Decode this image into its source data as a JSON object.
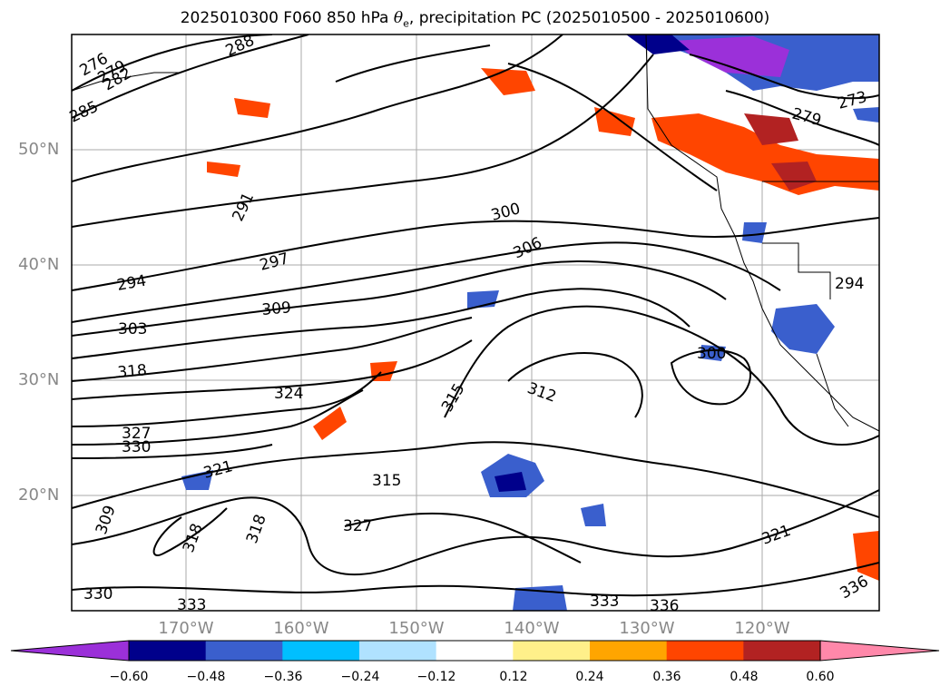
{
  "title": {
    "prefix": "2025010300 F060 850 hPa ",
    "symbol": "θ",
    "symbol_sub": "e",
    "suffix": ", precipitation PC (2025010500 - 2025010600)"
  },
  "latitude_labels": [
    "50°N",
    "40°N",
    "30°N",
    "20°N"
  ],
  "longitude_labels": [
    "170°W",
    "160°W",
    "150°W",
    "140°W",
    "130°W",
    "120°W"
  ],
  "contour_labels": [
    "276",
    "279",
    "282",
    "285",
    "288",
    "291",
    "294",
    "297",
    "300",
    "303",
    "306",
    "309",
    "312",
    "315",
    "318",
    "321",
    "324",
    "327",
    "330",
    "333",
    "336",
    "273",
    "279",
    "294",
    "300",
    "315",
    "318",
    "321",
    "327",
    "330",
    "333",
    "336",
    "309",
    "318"
  ],
  "colorbar": {
    "ticks": [
      "−0.60",
      "−0.48",
      "−0.36",
      "−0.24",
      "−0.12",
      "0.12",
      "0.24",
      "0.36",
      "0.48",
      "0.60"
    ],
    "colors": [
      "#9b30d9",
      "#00008b",
      "#3a5fcd",
      "#00bfff",
      "#b0e2ff",
      "#ffffff",
      "#fff08a",
      "#ffa500",
      "#ff4500",
      "#b22222",
      "#ff88aa"
    ]
  }
}
